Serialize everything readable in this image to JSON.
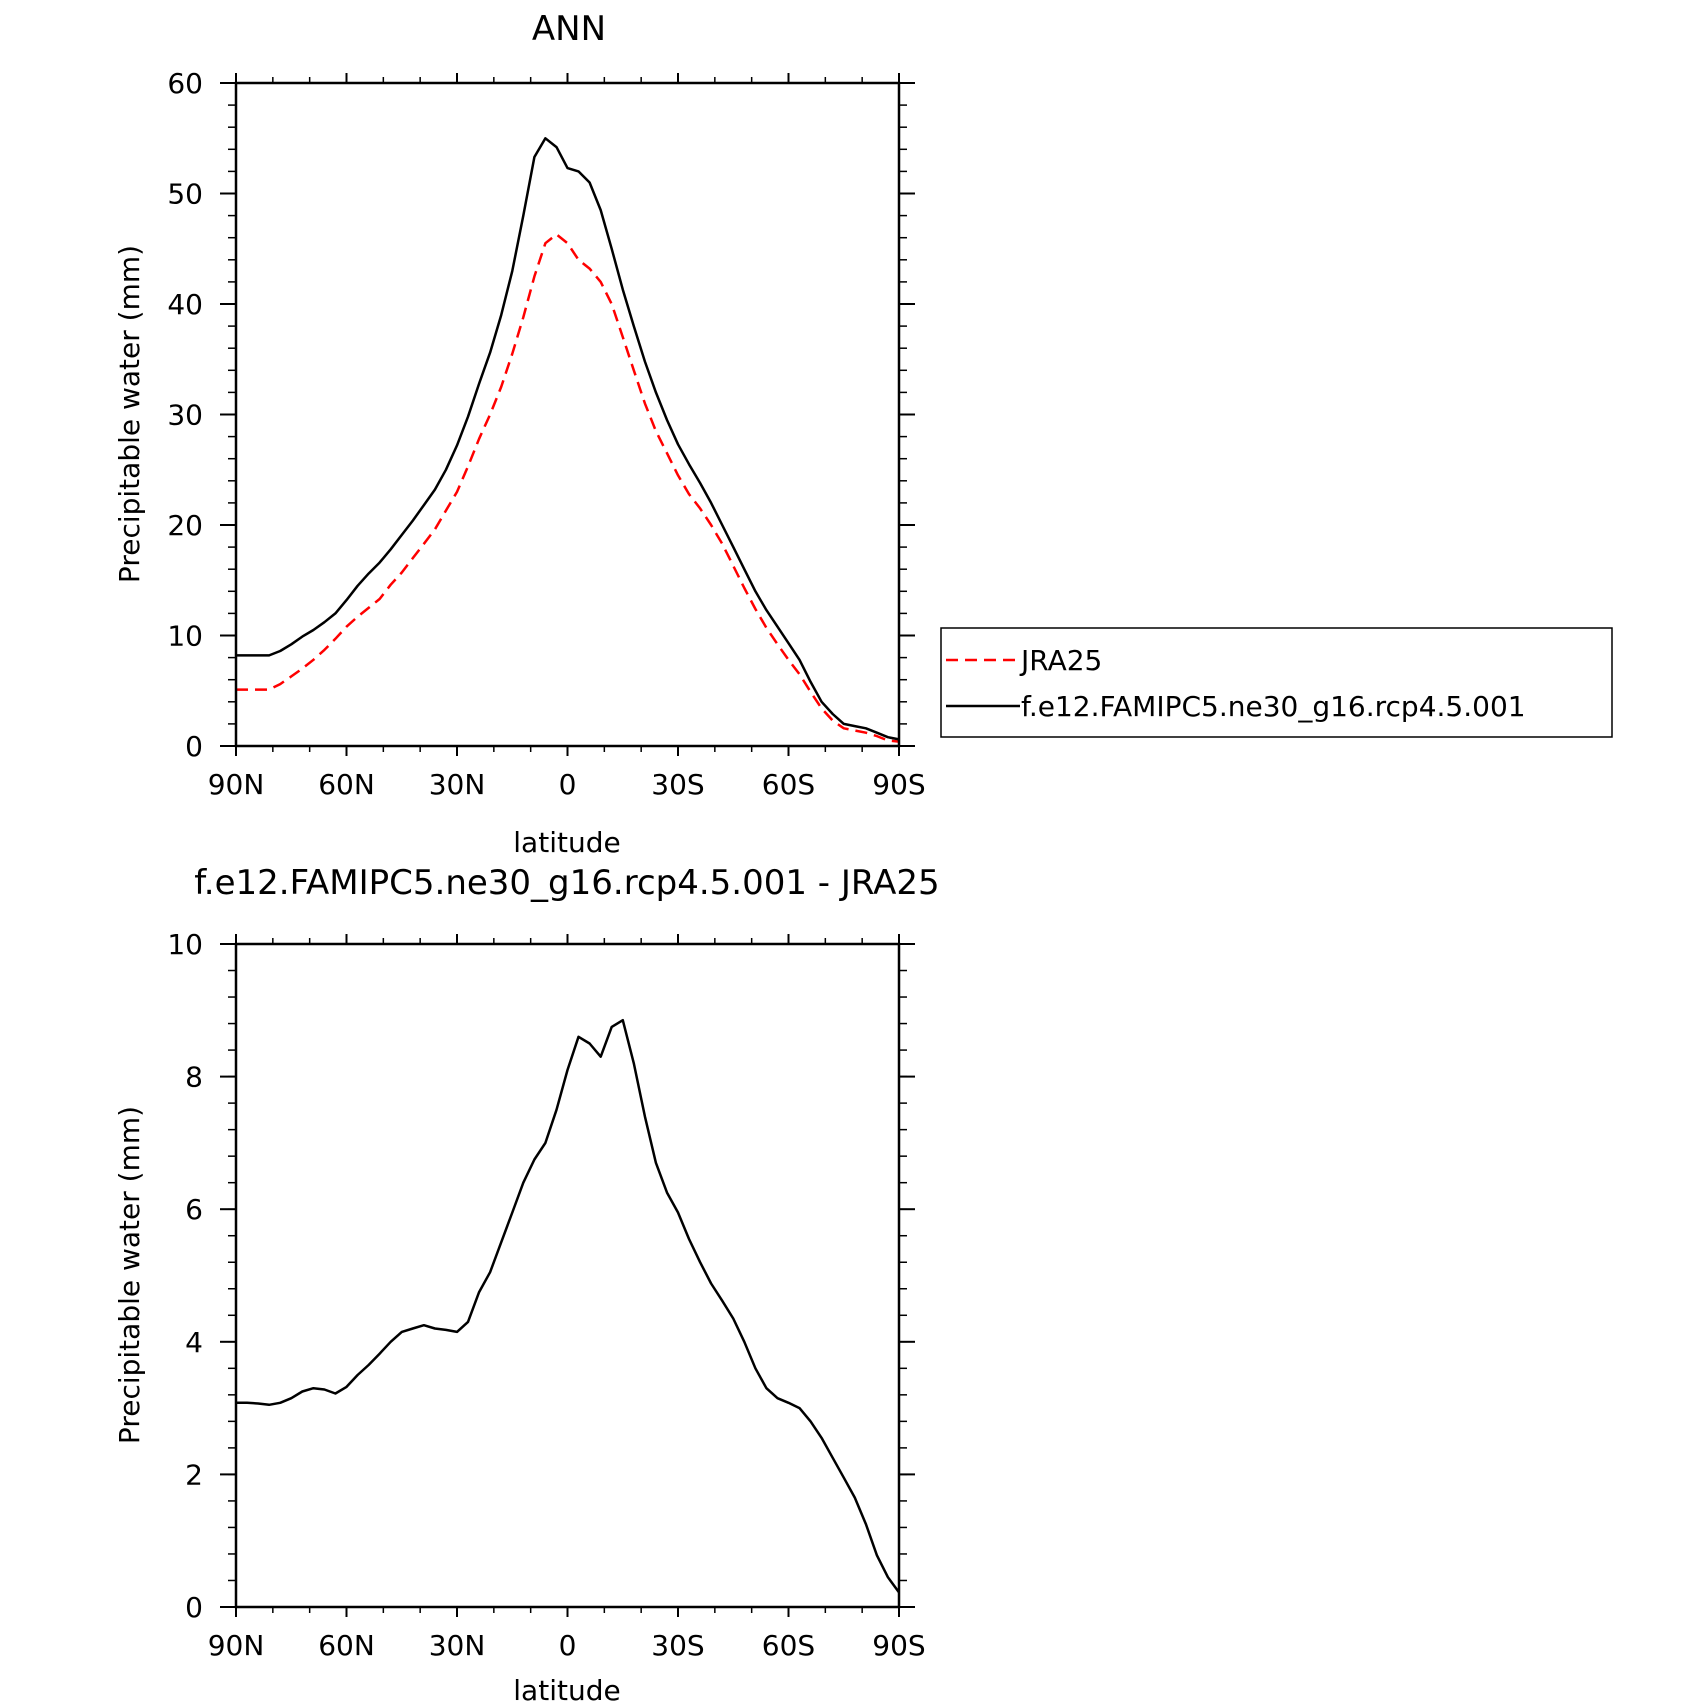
{
  "chart_data": [
    {
      "type": "line",
      "title": "ANN",
      "xlabel": "latitude",
      "ylabel": "Precipitable water (mm)",
      "xlim": [
        90,
        -90
      ],
      "ylim": [
        0,
        60
      ],
      "xticks": [
        90,
        60,
        30,
        0,
        -30,
        -60,
        -90
      ],
      "xtick_labels": [
        "90N",
        "60N",
        "30N",
        "0",
        "30S",
        "60S",
        "90S"
      ],
      "yticks": [
        0,
        10,
        20,
        30,
        40,
        50,
        60
      ],
      "ytick_labels": [
        "0",
        "10",
        "20",
        "30",
        "40",
        "50",
        "60"
      ],
      "grid": false,
      "legend_position": "right",
      "series": [
        {
          "name": "JRA25",
          "color": "#ff0000",
          "dash": "dashed",
          "points": [
            [
              90,
              5.1
            ],
            [
              87,
              5.1
            ],
            [
              84,
              5.1
            ],
            [
              81,
              5.1
            ],
            [
              78,
              5.6
            ],
            [
              75,
              6.3
            ],
            [
              72,
              7.0
            ],
            [
              69,
              7.8
            ],
            [
              66,
              8.7
            ],
            [
              63,
              9.7
            ],
            [
              60,
              10.8
            ],
            [
              57,
              11.7
            ],
            [
              54,
              12.5
            ],
            [
              51,
              13.3
            ],
            [
              48,
              14.6
            ],
            [
              45,
              15.7
            ],
            [
              42,
              17.0
            ],
            [
              39,
              18.3
            ],
            [
              36,
              19.6
            ],
            [
              33,
              21.3
            ],
            [
              30,
              23.0
            ],
            [
              27,
              25.3
            ],
            [
              24,
              27.8
            ],
            [
              21,
              30.0
            ],
            [
              18,
              32.5
            ],
            [
              15,
              35.5
            ],
            [
              12,
              38.8
            ],
            [
              9,
              42.5
            ],
            [
              6,
              45.5
            ],
            [
              3,
              46.3
            ],
            [
              0,
              45.5
            ],
            [
              -3,
              44.0
            ],
            [
              -6,
              43.2
            ],
            [
              -9,
              42.0
            ],
            [
              -12,
              40.0
            ],
            [
              -15,
              37.0
            ],
            [
              -18,
              34.0
            ],
            [
              -21,
              31.0
            ],
            [
              -24,
              28.5
            ],
            [
              -27,
              26.5
            ],
            [
              -30,
              24.5
            ],
            [
              -33,
              22.8
            ],
            [
              -36,
              21.5
            ],
            [
              -39,
              20.0
            ],
            [
              -42,
              18.3
            ],
            [
              -45,
              16.3
            ],
            [
              -48,
              14.3
            ],
            [
              -51,
              12.4
            ],
            [
              -54,
              10.7
            ],
            [
              -57,
              9.2
            ],
            [
              -60,
              7.8
            ],
            [
              -63,
              6.5
            ],
            [
              -66,
              4.9
            ],
            [
              -69,
              3.4
            ],
            [
              -72,
              2.3
            ],
            [
              -75,
              1.6
            ],
            [
              -78,
              1.4
            ],
            [
              -81,
              1.2
            ],
            [
              -84,
              0.9
            ],
            [
              -87,
              0.5
            ],
            [
              -90,
              0.4
            ]
          ]
        },
        {
          "name": "f.e12.FAMIPC5.ne30_g16.rcp4.5.001",
          "color": "#000000",
          "dash": "solid",
          "points": [
            [
              90,
              8.2
            ],
            [
              87,
              8.2
            ],
            [
              84,
              8.2
            ],
            [
              81,
              8.2
            ],
            [
              78,
              8.6
            ],
            [
              75,
              9.2
            ],
            [
              72,
              9.9
            ],
            [
              69,
              10.5
            ],
            [
              66,
              11.2
            ],
            [
              63,
              12.0
            ],
            [
              60,
              13.2
            ],
            [
              57,
              14.5
            ],
            [
              54,
              15.6
            ],
            [
              51,
              16.6
            ],
            [
              48,
              17.8
            ],
            [
              45,
              19.1
            ],
            [
              42,
              20.4
            ],
            [
              39,
              21.8
            ],
            [
              36,
              23.2
            ],
            [
              33,
              25.0
            ],
            [
              30,
              27.2
            ],
            [
              27,
              29.8
            ],
            [
              24,
              32.8
            ],
            [
              21,
              35.6
            ],
            [
              18,
              39.0
            ],
            [
              15,
              43.0
            ],
            [
              12,
              48.0
            ],
            [
              9,
              53.3
            ],
            [
              6,
              55.0
            ],
            [
              3,
              54.2
            ],
            [
              0,
              52.3
            ],
            [
              -3,
              52.0
            ],
            [
              -6,
              51.0
            ],
            [
              -9,
              48.5
            ],
            [
              -12,
              45.0
            ],
            [
              -15,
              41.3
            ],
            [
              -18,
              38.0
            ],
            [
              -21,
              34.8
            ],
            [
              -24,
              32.0
            ],
            [
              -27,
              29.5
            ],
            [
              -30,
              27.3
            ],
            [
              -33,
              25.5
            ],
            [
              -36,
              23.8
            ],
            [
              -39,
              22.0
            ],
            [
              -42,
              20.0
            ],
            [
              -45,
              18.0
            ],
            [
              -48,
              16.0
            ],
            [
              -51,
              14.0
            ],
            [
              -54,
              12.3
            ],
            [
              -57,
              10.8
            ],
            [
              -60,
              9.3
            ],
            [
              -63,
              7.8
            ],
            [
              -66,
              5.8
            ],
            [
              -69,
              4.0
            ],
            [
              -72,
              2.9
            ],
            [
              -75,
              2.0
            ],
            [
              -78,
              1.8
            ],
            [
              -81,
              1.6
            ],
            [
              -84,
              1.2
            ],
            [
              -87,
              0.8
            ],
            [
              -90,
              0.6
            ]
          ]
        }
      ]
    },
    {
      "type": "line",
      "title": "f.e12.FAMIPC5.ne30_g16.rcp4.5.001 - JRA25",
      "xlabel": "latitude",
      "ylabel": "Precipitable water (mm)",
      "xlim": [
        90,
        -90
      ],
      "ylim": [
        0,
        10
      ],
      "xticks": [
        90,
        60,
        30,
        0,
        -30,
        -60,
        -90
      ],
      "xtick_labels": [
        "90N",
        "60N",
        "30N",
        "0",
        "30S",
        "60S",
        "90S"
      ],
      "yticks": [
        0,
        2,
        4,
        6,
        8,
        10
      ],
      "ytick_labels": [
        "0",
        "2",
        "4",
        "6",
        "8",
        "10"
      ],
      "grid": false,
      "series": [
        {
          "color": "#000000",
          "dash": "solid",
          "points": [
            [
              90,
              3.08
            ],
            [
              87,
              3.08
            ],
            [
              84,
              3.07
            ],
            [
              81,
              3.05
            ],
            [
              78,
              3.08
            ],
            [
              75,
              3.15
            ],
            [
              72,
              3.25
            ],
            [
              69,
              3.3
            ],
            [
              66,
              3.28
            ],
            [
              63,
              3.22
            ],
            [
              60,
              3.32
            ],
            [
              57,
              3.5
            ],
            [
              54,
              3.65
            ],
            [
              51,
              3.82
            ],
            [
              48,
              4.0
            ],
            [
              45,
              4.15
            ],
            [
              42,
              4.2
            ],
            [
              39,
              4.25
            ],
            [
              36,
              4.2
            ],
            [
              33,
              4.18
            ],
            [
              30,
              4.15
            ],
            [
              27,
              4.3
            ],
            [
              24,
              4.75
            ],
            [
              21,
              5.05
            ],
            [
              18,
              5.5
            ],
            [
              15,
              5.95
            ],
            [
              12,
              6.4
            ],
            [
              9,
              6.75
            ],
            [
              6,
              7.0
            ],
            [
              3,
              7.5
            ],
            [
              0,
              8.1
            ],
            [
              -3,
              8.6
            ],
            [
              -6,
              8.5
            ],
            [
              -9,
              8.3
            ],
            [
              -12,
              8.75
            ],
            [
              -15,
              8.85
            ],
            [
              -18,
              8.2
            ],
            [
              -21,
              7.4
            ],
            [
              -24,
              6.7
            ],
            [
              -27,
              6.25
            ],
            [
              -30,
              5.95
            ],
            [
              -33,
              5.55
            ],
            [
              -36,
              5.2
            ],
            [
              -39,
              4.88
            ],
            [
              -42,
              4.62
            ],
            [
              -45,
              4.35
            ],
            [
              -48,
              4.0
            ],
            [
              -51,
              3.6
            ],
            [
              -54,
              3.3
            ],
            [
              -57,
              3.15
            ],
            [
              -60,
              3.08
            ],
            [
              -63,
              3.0
            ],
            [
              -66,
              2.8
            ],
            [
              -69,
              2.55
            ],
            [
              -72,
              2.25
            ],
            [
              -75,
              1.95
            ],
            [
              -78,
              1.65
            ],
            [
              -81,
              1.25
            ],
            [
              -84,
              0.78
            ],
            [
              -87,
              0.45
            ],
            [
              -90,
              0.22
            ]
          ]
        }
      ]
    }
  ]
}
